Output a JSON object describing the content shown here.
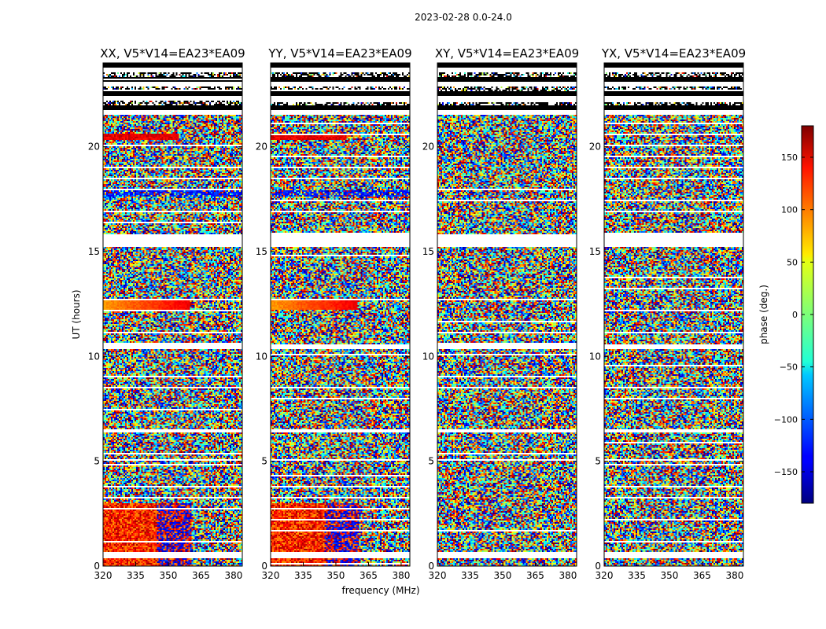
{
  "chart_data": {
    "type": "heatmap",
    "suptitle": "2023-02-28 0.0-24.0",
    "panels": [
      {
        "title": "XX, V5*V14=EA23*EA09",
        "pol": "XX"
      },
      {
        "title": "YY, V5*V14=EA23*EA09",
        "pol": "YY"
      },
      {
        "title": "XY, V5*V14=EA23*EA09",
        "pol": "XY"
      },
      {
        "title": "YX, V5*V14=EA23*EA09",
        "pol": "YX"
      }
    ],
    "xlabel": "frequency (MHz)",
    "ylabel": "UT (hours)",
    "xlim": [
      320,
      384
    ],
    "ylim": [
      0,
      24
    ],
    "xticks": [
      320,
      335,
      350,
      365,
      380
    ],
    "yticks": [
      0,
      5,
      10,
      15,
      20
    ],
    "colorbar": {
      "label": "phase (deg.)",
      "range": [
        -180,
        180
      ],
      "ticks": [
        150,
        100,
        50,
        0,
        -50,
        -100,
        -150
      ],
      "tick_labels": [
        "150",
        "100",
        "50",
        "0",
        "−50",
        "−100",
        "−150"
      ],
      "colormap": "jet"
    },
    "flagged_bands_hours": [
      [
        0.4,
        0.7
      ],
      [
        5.0,
        5.1
      ],
      [
        6.4,
        6.55
      ],
      [
        10.35,
        10.55
      ],
      [
        15.2,
        15.8
      ],
      [
        21.5,
        21.6
      ]
    ],
    "heavy_flag_region_hours": [
      21.6,
      24.0
    ]
  }
}
